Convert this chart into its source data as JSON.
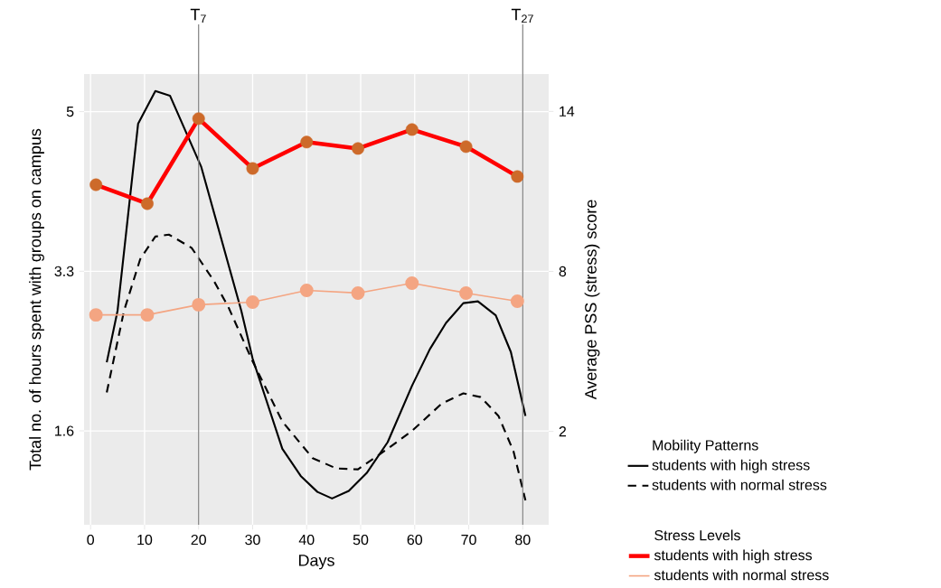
{
  "chart_data": {
    "type": "line",
    "xlabel": "Days",
    "ylabel": "Total no. of hours spent with groups on campus",
    "y2label": "Average PSS (stress) score",
    "xlim": [
      -1.2,
      84.8
    ],
    "xticks": [
      0,
      10,
      20,
      30,
      40,
      50,
      60,
      70,
      80
    ],
    "ylim": [
      0.6,
      5.4
    ],
    "yticks": [
      1.6,
      3.3,
      5
    ],
    "y2lim": [
      -1.5,
      15.4
    ],
    "y2ticks": [
      2,
      8,
      14
    ],
    "grid": true,
    "legend": "right",
    "legend_title": "Mobility Patterns",
    "annotations": [
      "Stress Levels"
    ],
    "ref_lines": [
      {
        "axis": "x",
        "value": 20,
        "label": "T$_{7}$",
        "color": "#808080"
      },
      {
        "axis": "x",
        "value": 80,
        "label": "T$_{27}$",
        "color": "#808080"
      }
    ],
    "series": [
      {
        "name": "students with high stress",
        "color": "#000000",
        "axis": "y",
        "line_style": "solid",
        "marker": "none",
        "x": [
          3,
          5,
          8.8,
          12,
          14.7,
          20.5,
          27.9,
          30,
          35.5,
          38.9,
          42,
          44.7,
          47.8,
          51.1,
          55,
          59.5,
          62.8,
          65.8,
          69,
          71.7,
          75,
          77.8,
          80.5
        ],
        "values": [
          2.33,
          2.88,
          4.87,
          5.22,
          5.17,
          4.41,
          2.88,
          2.37,
          1.41,
          1.12,
          0.95,
          0.88,
          0.96,
          1.15,
          1.48,
          2.08,
          2.47,
          2.75,
          2.96,
          2.98,
          2.83,
          2.44,
          1.76
        ]
      },
      {
        "name": "students with normal stress",
        "color": "#000000",
        "axis": "y",
        "line_style": "dashed",
        "marker": "none",
        "x": [
          3,
          6.2,
          9.2,
          12,
          14.5,
          18.7,
          22.8,
          25.5,
          30,
          35.5,
          41.1,
          45.5,
          49.5,
          55,
          59.5,
          65,
          69,
          72.2,
          75.5,
          78.3,
          80.5
        ],
        "values": [
          2.01,
          2.88,
          3.43,
          3.67,
          3.69,
          3.55,
          3.2,
          2.92,
          2.34,
          1.7,
          1.31,
          1.2,
          1.19,
          1.41,
          1.6,
          1.89,
          2.0,
          1.96,
          1.76,
          1.38,
          0.86
        ]
      },
      {
        "name": "students with high stress",
        "color": "#ff0000",
        "axis": "y2",
        "line_style": "solid",
        "marker": "circle",
        "colors": [
          "#cd6a2a",
          "#cd6a2a",
          "#cd6a2a",
          "#cd6a2a",
          "#cd6a2a",
          "#cd6a2a",
          "#cd6a2a",
          "#cd6a2a",
          "#cd6a2a"
        ],
        "x": [
          1,
          10.5,
          20,
          30,
          40,
          49.5,
          59.5,
          69.5,
          79
        ],
        "values": [
          11.25,
          10.54,
          13.73,
          11.86,
          12.85,
          12.61,
          13.32,
          12.68,
          11.56
        ]
      },
      {
        "name": "students with normal stress",
        "color": "#f4a582",
        "axis": "y2",
        "line_style": "solid",
        "marker": "circle",
        "x": [
          1,
          10.5,
          20,
          30,
          40,
          49.5,
          59.5,
          69.5,
          79
        ],
        "values": [
          6.37,
          6.37,
          6.75,
          6.85,
          7.29,
          7.19,
          7.56,
          7.19,
          6.88
        ]
      }
    ]
  }
}
